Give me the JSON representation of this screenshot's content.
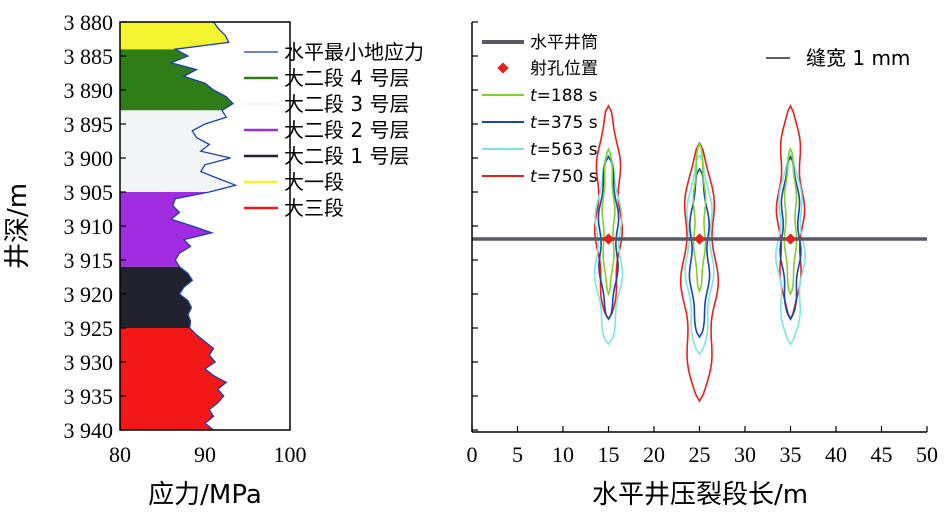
{
  "chart_data": [
    {
      "type": "area",
      "xlabel": "应力/MPa",
      "ylabel": "井深/m",
      "xlim": [
        80,
        100
      ],
      "ylim": [
        3880,
        3940
      ],
      "x_ticks": [
        "80",
        "90",
        "100"
      ],
      "y_ticks": [
        "3 880",
        "3 885",
        "3 890",
        "3 895",
        "3 900",
        "3 905",
        "3 910",
        "3 915",
        "3 920",
        "3 925",
        "3 930",
        "3 935",
        "3 940"
      ],
      "curve": {
        "name": "水平最小地应力",
        "color": "#1a3fb0",
        "points": [
          [
            3880,
            91
          ],
          [
            3881,
            91.6
          ],
          [
            3882,
            92.4
          ],
          [
            3883,
            92.8
          ],
          [
            3884,
            86.5
          ],
          [
            3885,
            88
          ],
          [
            3886,
            86
          ],
          [
            3887,
            89
          ],
          [
            3888,
            87.5
          ],
          [
            3889,
            90
          ],
          [
            3890,
            91
          ],
          [
            3891,
            92.5
          ],
          [
            3892,
            93.3
          ],
          [
            3893,
            92
          ],
          [
            3894,
            92.5
          ],
          [
            3895,
            90
          ],
          [
            3896,
            88.5
          ],
          [
            3897,
            89
          ],
          [
            3898,
            90.5
          ],
          [
            3899,
            89.5
          ],
          [
            3900,
            93
          ],
          [
            3901,
            90
          ],
          [
            3902,
            89.5
          ],
          [
            3903,
            91.5
          ],
          [
            3904,
            93.6
          ],
          [
            3905,
            90.5
          ],
          [
            3906,
            86.5
          ],
          [
            3907,
            86.2
          ],
          [
            3908,
            87
          ],
          [
            3909,
            86
          ],
          [
            3910,
            88.5
          ],
          [
            3911,
            90.8
          ],
          [
            3912,
            87.5
          ],
          [
            3913,
            88.3
          ],
          [
            3914,
            87
          ],
          [
            3915,
            86.5
          ],
          [
            3916,
            87
          ],
          [
            3917,
            88
          ],
          [
            3918,
            88.5
          ],
          [
            3919,
            87.5
          ],
          [
            3920,
            87
          ],
          [
            3921,
            88
          ],
          [
            3922,
            88.4
          ],
          [
            3923,
            88
          ],
          [
            3924,
            88.3
          ],
          [
            3925,
            88.2
          ],
          [
            3926,
            89
          ],
          [
            3927,
            90
          ],
          [
            3928,
            91
          ],
          [
            3929,
            90.5
          ],
          [
            3930,
            91.2
          ],
          [
            3931,
            90
          ],
          [
            3932,
            91
          ],
          [
            3933,
            92.5
          ],
          [
            3934,
            91.5
          ],
          [
            3935,
            92.2
          ],
          [
            3936,
            91.5
          ],
          [
            3937,
            90.5
          ],
          [
            3938,
            91
          ],
          [
            3939,
            90
          ],
          [
            3940,
            91
          ]
        ]
      },
      "series": [
        {
          "name": "大二段 4 号层",
          "color": "#2e7d16",
          "top": 3884,
          "bottom": 3893
        },
        {
          "name": "大二段 3 号层",
          "color": "#f2f6f6",
          "top": 3893,
          "bottom": 3905
        },
        {
          "name": "大二段 2 号层",
          "color": "#a12be0",
          "top": 3905,
          "bottom": 3916
        },
        {
          "name": "大二段 1 号层",
          "color": "#22222e",
          "top": 3916,
          "bottom": 3925
        },
        {
          "name": "大一段",
          "color": "#f3f32e",
          "top": 3880,
          "bottom": 3884
        },
        {
          "name": "大三段",
          "color": "#f21818",
          "top": 3925,
          "bottom": 3940
        }
      ]
    },
    {
      "type": "line",
      "xlabel": "水平井压裂段长/m",
      "xlim": [
        0,
        50
      ],
      "x_ticks": [
        "0",
        "5",
        "10",
        "15",
        "20",
        "25",
        "30",
        "35",
        "40",
        "45",
        "50"
      ],
      "legend_note": {
        "name": "缝宽 1 mm",
        "color": "#000000"
      },
      "wellbore": {
        "name": "水平井筒",
        "color": "#595966"
      },
      "perforation": {
        "name": "射孔位置",
        "color": "#e8201b",
        "x": [
          15,
          25,
          35
        ]
      },
      "series": [
        {
          "name": "t=188 s",
          "color": "#7fd12b",
          "tip_up": [
            20,
            13,
            20
          ],
          "tip_down": [
            19,
            14,
            19
          ]
        },
        {
          "name": "t=375 s",
          "color": "#1744b8",
          "tip_up": [
            18,
            19,
            18
          ],
          "tip_down": [
            28,
            33,
            28
          ]
        },
        {
          "name": "t=563 s",
          "color": "#7ae8e0",
          "tip_up": [
            17,
            17,
            17
          ],
          "tip_down": [
            32,
            34,
            32
          ]
        },
        {
          "name": "t=750 s",
          "color": "#e8201b",
          "tip_up": [
            33,
            28,
            33
          ],
          "tip_down": [
            20,
            43,
            20
          ]
        }
      ],
      "legend_labels": {
        "wellbore": "水平井筒",
        "perforation": "射孔位置",
        "t188": "188 s",
        "t375": "375 s",
        "t563": "563 s",
        "t750": "750 s",
        "t_prefix": "t",
        "eq": "="
      }
    }
  ]
}
